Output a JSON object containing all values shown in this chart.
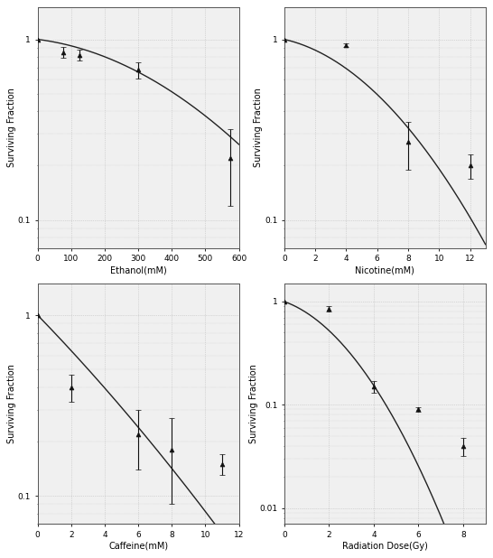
{
  "ethanol": {
    "x": [
      0,
      75,
      125,
      300,
      575
    ],
    "y": [
      1.0,
      0.85,
      0.82,
      0.68,
      0.22
    ],
    "yerr": [
      0.0,
      0.06,
      0.06,
      0.07,
      0.1
    ],
    "xlabel": "Ethanol(mM)",
    "ylabel": "Surviving Fraction",
    "xlim": [
      0,
      600
    ],
    "ylim": [
      0.07,
      1.5
    ],
    "alpha": 0.00055,
    "beta": 2.8e-06
  },
  "nicotine": {
    "x": [
      0,
      4,
      8,
      12
    ],
    "y": [
      1.0,
      0.93,
      0.27,
      0.2
    ],
    "yerr": [
      0.0,
      0.02,
      0.08,
      0.03
    ],
    "xlabel": "Nicotine(mM)",
    "ylabel": "Surviving Fraction",
    "xlim": [
      0,
      13
    ],
    "ylim": [
      0.07,
      1.5
    ],
    "alpha": 0.045,
    "beta": 0.012
  },
  "caffeine": {
    "x": [
      0,
      2,
      6,
      8,
      11
    ],
    "y": [
      1.0,
      0.4,
      0.22,
      0.18,
      0.15
    ],
    "yerr": [
      0.0,
      0.07,
      0.08,
      0.09,
      0.02
    ],
    "xlabel": "Caffeine(mM)",
    "ylabel": "Surviving Fraction",
    "xlim": [
      0,
      12
    ],
    "ylim": [
      0.07,
      1.5
    ],
    "alpha": 0.22,
    "beta": 0.003
  },
  "radiation": {
    "x": [
      0,
      2,
      4,
      6,
      8
    ],
    "y": [
      1.0,
      0.85,
      0.15,
      0.09,
      0.04
    ],
    "yerr": [
      0.0,
      0.05,
      0.02,
      0.005,
      0.008
    ],
    "xlabel": "Radiation Dose(Gy)",
    "ylabel": "Surviving Fraction",
    "xlim": [
      0,
      9
    ],
    "ylim": [
      0.007,
      1.5
    ],
    "alpha": 0.18,
    "beta": 0.072
  },
  "bg_color": "#f0f0f0",
  "grid_color": "#bbbbbb",
  "line_color": "#222222",
  "marker_color": "#111111",
  "marker": "^",
  "marker_size": 3.5,
  "line_width": 1.0
}
